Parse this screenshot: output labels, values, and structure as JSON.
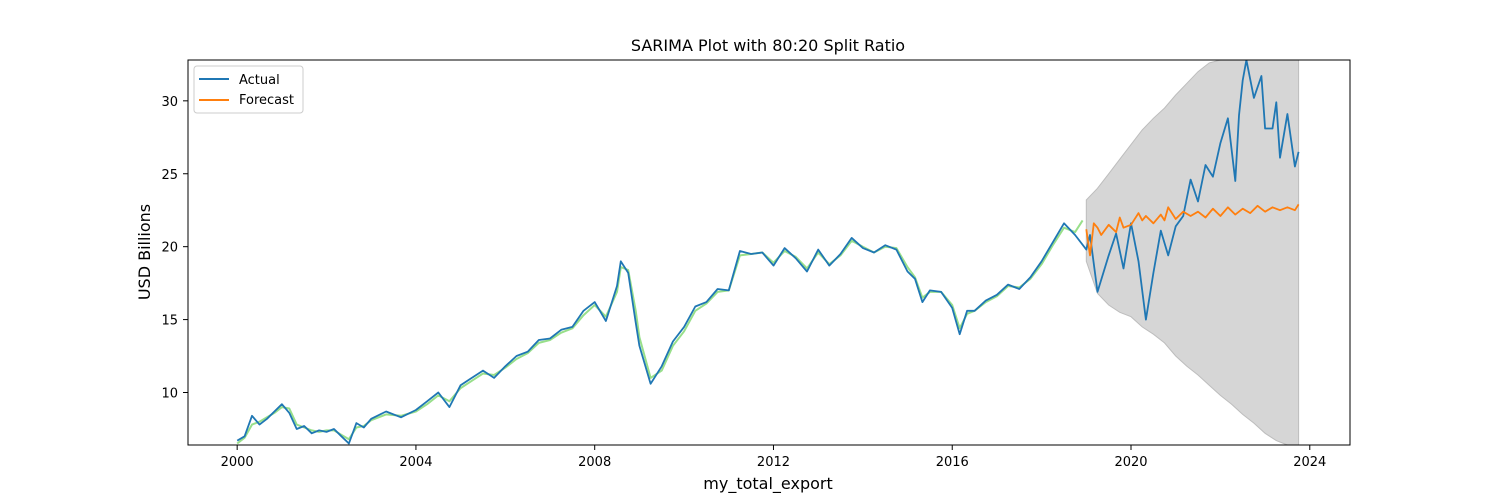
{
  "chart_data": {
    "type": "line",
    "title": "SARIMA Plot with 80:20 Split Ratio",
    "xlabel": "my_total_export",
    "ylabel": "USD Billions",
    "xlim": [
      1998.9,
      2024.9
    ],
    "ylim": [
      6.4,
      32.8
    ],
    "x_ticks": [
      2000,
      2004,
      2008,
      2012,
      2016,
      2020,
      2024
    ],
    "x_tick_labels": [
      "2000",
      "2004",
      "2008",
      "2012",
      "2016",
      "2020",
      "2024"
    ],
    "y_ticks": [
      10,
      15,
      20,
      25,
      30
    ],
    "y_tick_labels": [
      "10",
      "15",
      "20",
      "25",
      "30"
    ],
    "grid": false,
    "legend": {
      "location": "upper left",
      "entries": [
        "Actual",
        "Forecast"
      ]
    },
    "colors": {
      "actual": "#1f77b4",
      "forecast": "#ff7f0e",
      "fitted": "#98df8a",
      "confidence": "#d6d6d6"
    },
    "series": [
      {
        "name": "Actual",
        "role": "actual",
        "x": [
          2000.0,
          2000.167,
          2000.333,
          2000.5,
          2000.667,
          2000.833,
          2001.0,
          2001.167,
          2001.333,
          2001.5,
          2001.667,
          2001.833,
          2002.0,
          2002.167,
          2002.333,
          2002.5,
          2002.667,
          2002.833,
          2003.0,
          2003.333,
          2003.667,
          2004.0,
          2004.25,
          2004.5,
          2004.75,
          2005.0,
          2005.25,
          2005.5,
          2005.75,
          2006.0,
          2006.25,
          2006.5,
          2006.75,
          2007.0,
          2007.25,
          2007.5,
          2007.75,
          2008.0,
          2008.25,
          2008.5,
          2008.583,
          2008.75,
          2008.917,
          2009.0,
          2009.25,
          2009.5,
          2009.75,
          2010.0,
          2010.25,
          2010.5,
          2010.75,
          2011.0,
          2011.25,
          2011.5,
          2011.75,
          2012.0,
          2012.25,
          2012.5,
          2012.75,
          2013.0,
          2013.25,
          2013.5,
          2013.75,
          2014.0,
          2014.25,
          2014.5,
          2014.75,
          2015.0,
          2015.167,
          2015.333,
          2015.5,
          2015.75,
          2016.0,
          2016.167,
          2016.333,
          2016.5,
          2016.75,
          2017.0,
          2017.25,
          2017.5,
          2017.75,
          2018.0,
          2018.25,
          2018.5,
          2018.75,
          2019.0,
          2019.083,
          2019.25,
          2019.5,
          2019.667,
          2019.833,
          2020.0,
          2020.167,
          2020.333,
          2020.5,
          2020.667,
          2020.833,
          2021.0,
          2021.167,
          2021.333,
          2021.5,
          2021.667,
          2021.833,
          2022.0,
          2022.167,
          2022.333,
          2022.417,
          2022.5,
          2022.583,
          2022.75,
          2022.917,
          2023.0,
          2023.167,
          2023.25,
          2023.333,
          2023.5,
          2023.667,
          2023.75
        ],
        "values": [
          6.7,
          7.0,
          8.4,
          7.8,
          8.2,
          8.7,
          9.2,
          8.6,
          7.5,
          7.7,
          7.2,
          7.4,
          7.3,
          7.5,
          7.0,
          6.5,
          7.9,
          7.6,
          8.2,
          8.7,
          8.3,
          8.8,
          9.4,
          10.0,
          9.0,
          10.5,
          11.0,
          11.5,
          11.0,
          11.8,
          12.5,
          12.8,
          13.6,
          13.7,
          14.3,
          14.5,
          15.6,
          16.2,
          14.9,
          17.3,
          19.0,
          18.2,
          14.8,
          13.2,
          10.6,
          11.8,
          13.5,
          14.5,
          15.9,
          16.2,
          17.1,
          17.0,
          19.7,
          19.5,
          19.6,
          18.7,
          19.9,
          19.2,
          18.3,
          19.8,
          18.7,
          19.5,
          20.6,
          19.9,
          19.6,
          20.1,
          19.8,
          18.3,
          17.8,
          16.2,
          17.0,
          16.9,
          15.8,
          14.0,
          15.6,
          15.6,
          16.3,
          16.7,
          17.4,
          17.1,
          17.9,
          19.0,
          20.3,
          21.6,
          20.8,
          19.8,
          20.8,
          16.9,
          19.4,
          20.9,
          18.5,
          21.6,
          19.0,
          15.0,
          18.2,
          21.1,
          19.4,
          21.4,
          22.1,
          24.6,
          23.1,
          25.6,
          24.8,
          27.1,
          28.8,
          24.5,
          29.0,
          31.4,
          32.8,
          30.2,
          31.7,
          28.1,
          28.1,
          29.9,
          26.1,
          29.1,
          25.5,
          26.5
        ]
      },
      {
        "name": "Forecast",
        "role": "forecast",
        "x": [
          2019.0,
          2019.083,
          2019.167,
          2019.25,
          2019.333,
          2019.5,
          2019.667,
          2019.75,
          2019.833,
          2020.0,
          2020.167,
          2020.25,
          2020.333,
          2020.5,
          2020.667,
          2020.75,
          2020.833,
          2021.0,
          2021.167,
          2021.333,
          2021.5,
          2021.667,
          2021.833,
          2022.0,
          2022.167,
          2022.333,
          2022.5,
          2022.667,
          2022.833,
          2023.0,
          2023.167,
          2023.333,
          2023.5,
          2023.667,
          2023.75
        ],
        "values": [
          21.2,
          19.4,
          21.6,
          21.3,
          20.8,
          21.5,
          21.0,
          22.0,
          21.3,
          21.5,
          22.3,
          21.8,
          22.1,
          21.6,
          22.2,
          21.8,
          22.7,
          21.9,
          22.4,
          22.1,
          22.4,
          22.0,
          22.6,
          22.1,
          22.7,
          22.2,
          22.6,
          22.3,
          22.8,
          22.4,
          22.7,
          22.5,
          22.7,
          22.5,
          22.9
        ]
      },
      {
        "role": "fitted",
        "x": [
          2000.0,
          2000.167,
          2000.333,
          2000.5,
          2000.667,
          2000.833,
          2001.0,
          2001.167,
          2001.333,
          2001.5,
          2001.667,
          2001.833,
          2002.0,
          2002.167,
          2002.333,
          2002.5,
          2002.667,
          2002.833,
          2003.0,
          2003.333,
          2003.667,
          2004.0,
          2004.25,
          2004.5,
          2004.75,
          2005.0,
          2005.25,
          2005.5,
          2005.75,
          2006.0,
          2006.25,
          2006.5,
          2006.75,
          2007.0,
          2007.25,
          2007.5,
          2007.75,
          2008.0,
          2008.25,
          2008.5,
          2008.583,
          2008.75,
          2008.917,
          2009.0,
          2009.25,
          2009.5,
          2009.75,
          2010.0,
          2010.25,
          2010.5,
          2010.75,
          2011.0,
          2011.25,
          2011.5,
          2011.75,
          2012.0,
          2012.25,
          2012.5,
          2012.75,
          2013.0,
          2013.25,
          2013.5,
          2013.75,
          2014.0,
          2014.25,
          2014.5,
          2014.75,
          2015.0,
          2015.167,
          2015.333,
          2015.5,
          2015.75,
          2016.0,
          2016.167,
          2016.333,
          2016.5,
          2016.75,
          2017.0,
          2017.25,
          2017.5,
          2017.75,
          2018.0,
          2018.25,
          2018.5,
          2018.75,
          2018.917
        ],
        "values": [
          6.5,
          6.9,
          7.8,
          8.0,
          8.3,
          8.6,
          9.0,
          8.9,
          7.8,
          7.6,
          7.4,
          7.3,
          7.4,
          7.4,
          7.1,
          6.8,
          7.6,
          7.7,
          8.1,
          8.5,
          8.4,
          8.7,
          9.2,
          9.8,
          9.4,
          10.3,
          10.8,
          11.3,
          11.2,
          11.7,
          12.3,
          12.7,
          13.4,
          13.6,
          14.1,
          14.4,
          15.3,
          16.0,
          15.2,
          16.9,
          18.6,
          18.4,
          15.6,
          13.8,
          11.0,
          11.5,
          13.2,
          14.2,
          15.6,
          16.1,
          16.9,
          17.0,
          19.4,
          19.5,
          19.6,
          18.9,
          19.7,
          19.3,
          18.5,
          19.6,
          18.8,
          19.4,
          20.4,
          20.0,
          19.6,
          20.0,
          19.9,
          18.6,
          17.9,
          16.5,
          16.9,
          16.9,
          16.0,
          14.4,
          15.4,
          15.6,
          16.2,
          16.6,
          17.3,
          17.2,
          17.8,
          18.8,
          20.1,
          21.3,
          21.0,
          21.8
        ]
      }
    ],
    "confidence_band": {
      "x": [
        2019.0,
        2019.25,
        2019.5,
        2019.75,
        2020.0,
        2020.25,
        2020.5,
        2020.75,
        2021.0,
        2021.25,
        2021.5,
        2021.75,
        2022.0,
        2022.25,
        2022.5,
        2022.75,
        2023.0,
        2023.25,
        2023.5,
        2023.75
      ],
      "lower": [
        19.0,
        16.8,
        16.0,
        15.5,
        15.2,
        14.5,
        14.0,
        13.4,
        12.5,
        11.8,
        11.2,
        10.5,
        9.8,
        9.2,
        8.5,
        7.9,
        7.2,
        6.7,
        6.4,
        6.4
      ],
      "upper": [
        23.2,
        24.0,
        25.0,
        26.0,
        27.0,
        28.0,
        28.8,
        29.5,
        30.4,
        31.2,
        32.0,
        32.6,
        32.8,
        32.8,
        32.8,
        32.8,
        32.8,
        32.8,
        32.8,
        32.8
      ]
    }
  }
}
